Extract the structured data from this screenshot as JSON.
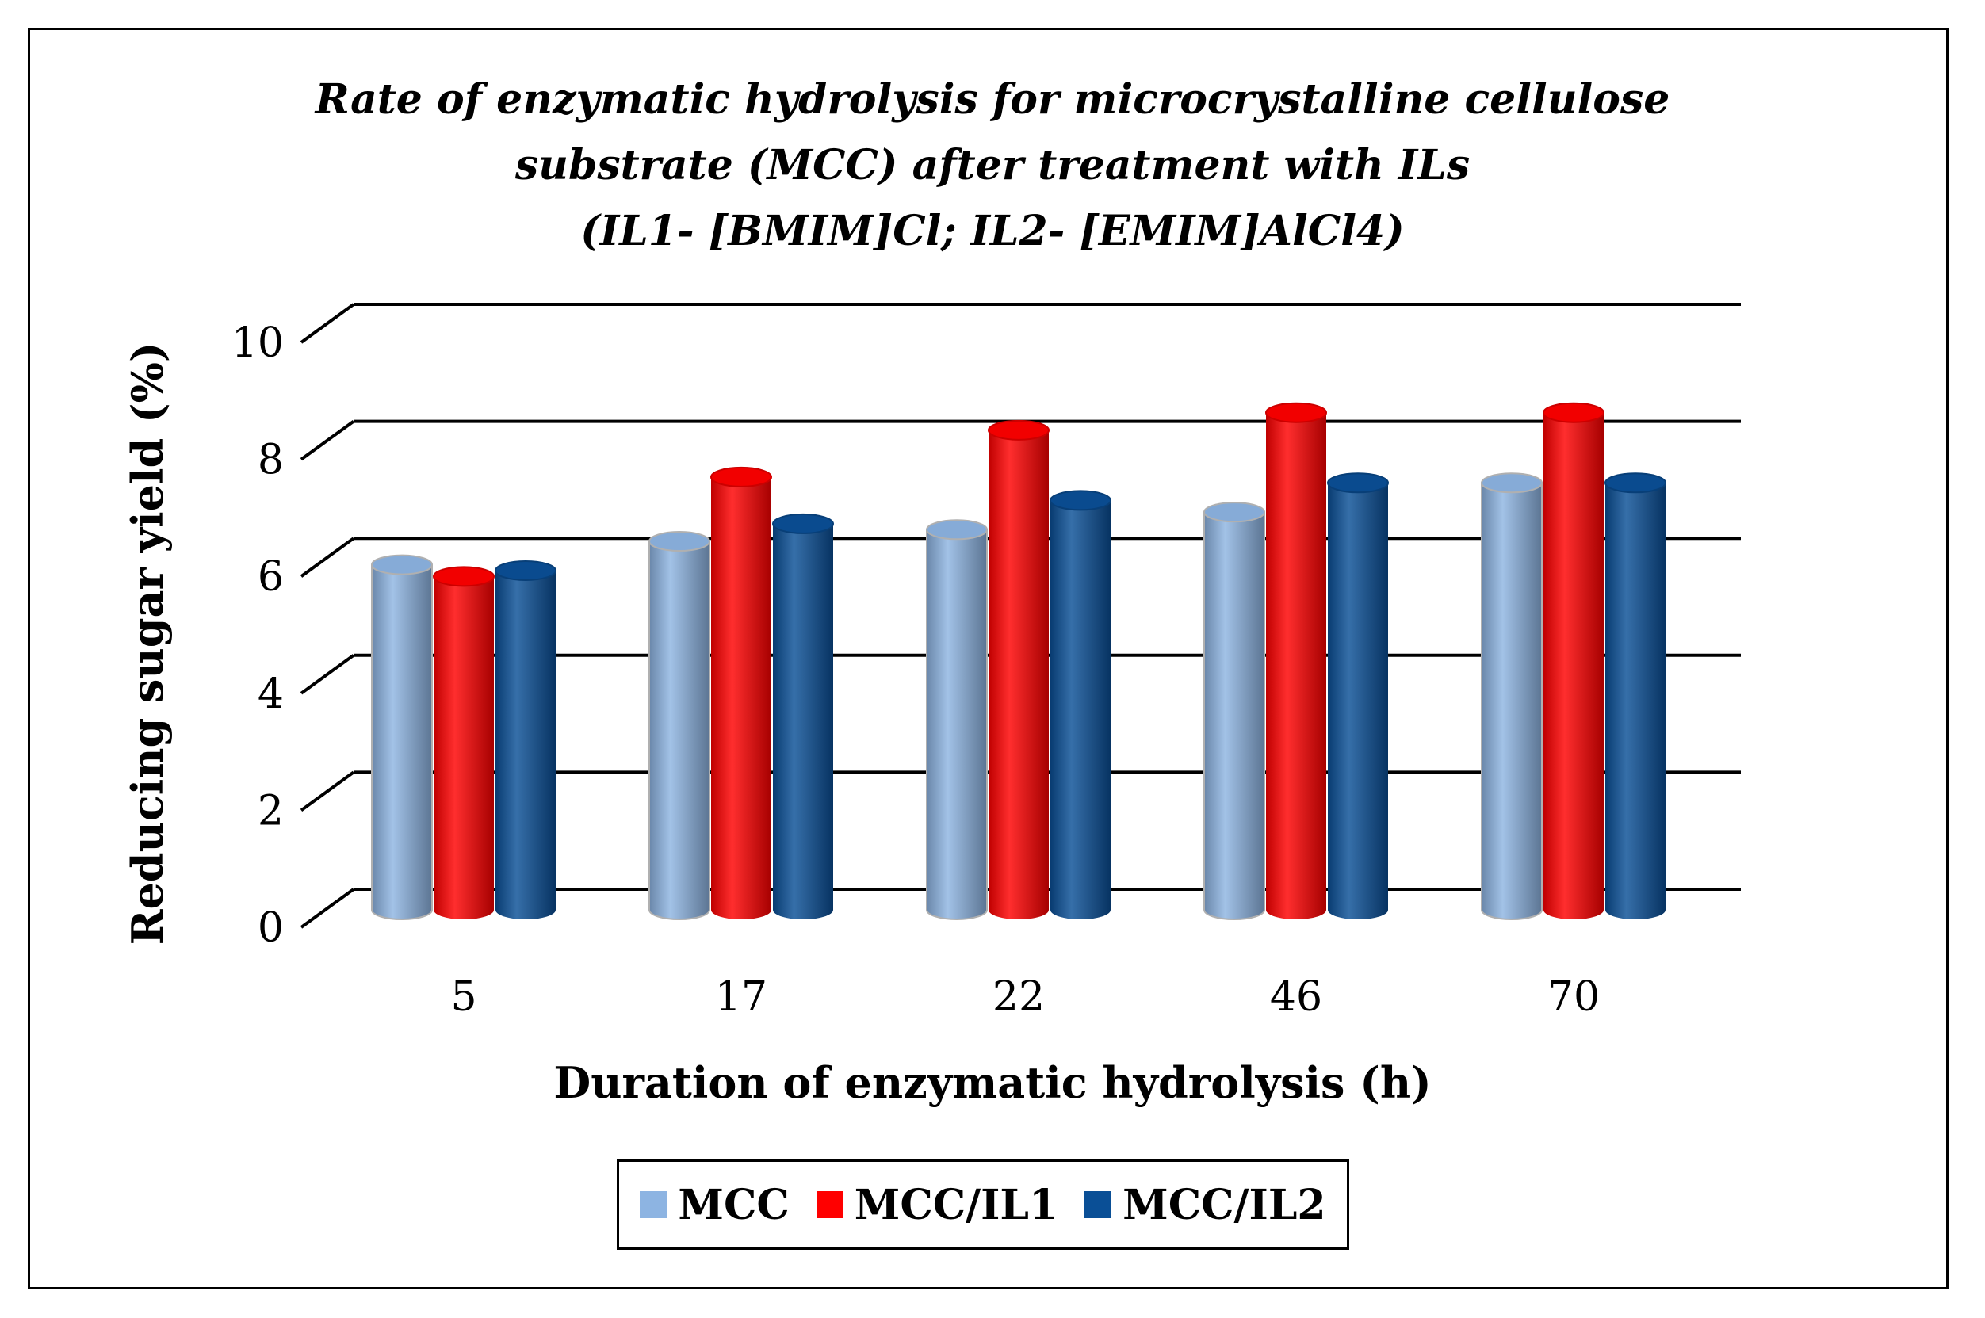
{
  "chart_data": {
    "type": "bar",
    "title_lines": [
      "Rate of enzymatic hydrolysis for microcrystalline cellulose",
      "substrate (MCC) after treatment with ILs",
      "(IL1- [BMIM]Cl; IL2- [EMIM]AlCl4)"
    ],
    "xlabel": "Duration of enzymatic hydrolysis (h)",
    "ylabel": "Reducing sugar yield (%)",
    "categories": [
      "5",
      "17",
      "22",
      "46",
      "70"
    ],
    "yticks": [
      "0",
      "2",
      "4",
      "6",
      "8",
      "10"
    ],
    "ylim": [
      0,
      10
    ],
    "grid": true,
    "legend_position": "bottom",
    "series": [
      {
        "name": "MCC",
        "color": "#8db4e2",
        "values": [
          5.9,
          6.3,
          6.5,
          6.8,
          7.3
        ]
      },
      {
        "name": "MCC/IL1",
        "color": "#ff0000",
        "values": [
          5.7,
          7.4,
          8.2,
          8.5,
          8.5
        ]
      },
      {
        "name": "MCC/IL2",
        "color": "#0a4f96",
        "values": [
          5.8,
          6.6,
          7.0,
          7.3,
          7.3
        ]
      }
    ]
  }
}
